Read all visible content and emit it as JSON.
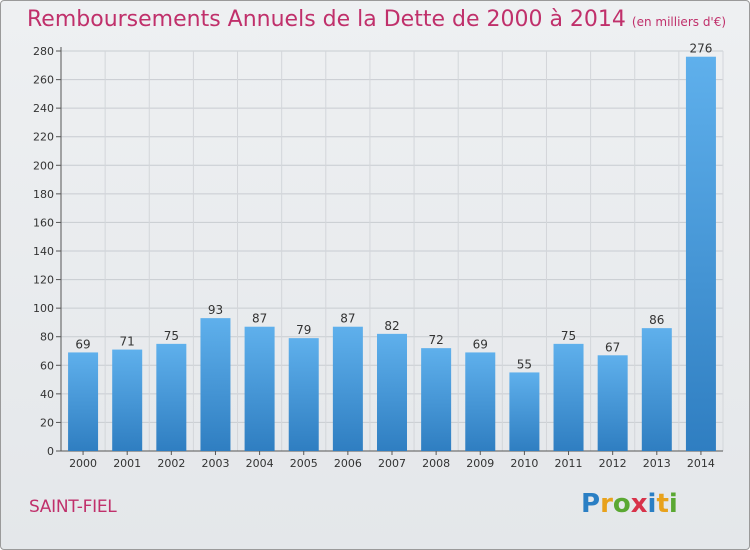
{
  "chart_data": {
    "type": "bar",
    "title": "Remboursements Annuels de la Dette de 2000 à 2014",
    "subtitle": "(en milliers d'€)",
    "categories": [
      "2000",
      "2001",
      "2002",
      "2003",
      "2004",
      "2005",
      "2006",
      "2007",
      "2008",
      "2009",
      "2010",
      "2011",
      "2012",
      "2013",
      "2014"
    ],
    "values": [
      69,
      71,
      75,
      93,
      87,
      79,
      87,
      82,
      72,
      69,
      55,
      75,
      67,
      86,
      276
    ],
    "ylim": [
      0,
      280
    ],
    "yticks": [
      0,
      20,
      40,
      60,
      80,
      100,
      120,
      140,
      160,
      180,
      200,
      220,
      240,
      260,
      280
    ],
    "xlabel": "",
    "ylabel": "",
    "grid": true
  },
  "commune": "SAINT-FIEL",
  "logo": {
    "letters": [
      "P",
      "r",
      "o",
      "x",
      "i",
      "t",
      "i"
    ],
    "colors": [
      "#2a7fc4",
      "#e8a21c",
      "#5aa832",
      "#d8324a",
      "#2a7fc4",
      "#e8a21c",
      "#5aa832"
    ]
  },
  "colors": {
    "title": "#c0306b",
    "bar_top": "#5fb0ec",
    "bar_bottom": "#2f7ec1"
  }
}
